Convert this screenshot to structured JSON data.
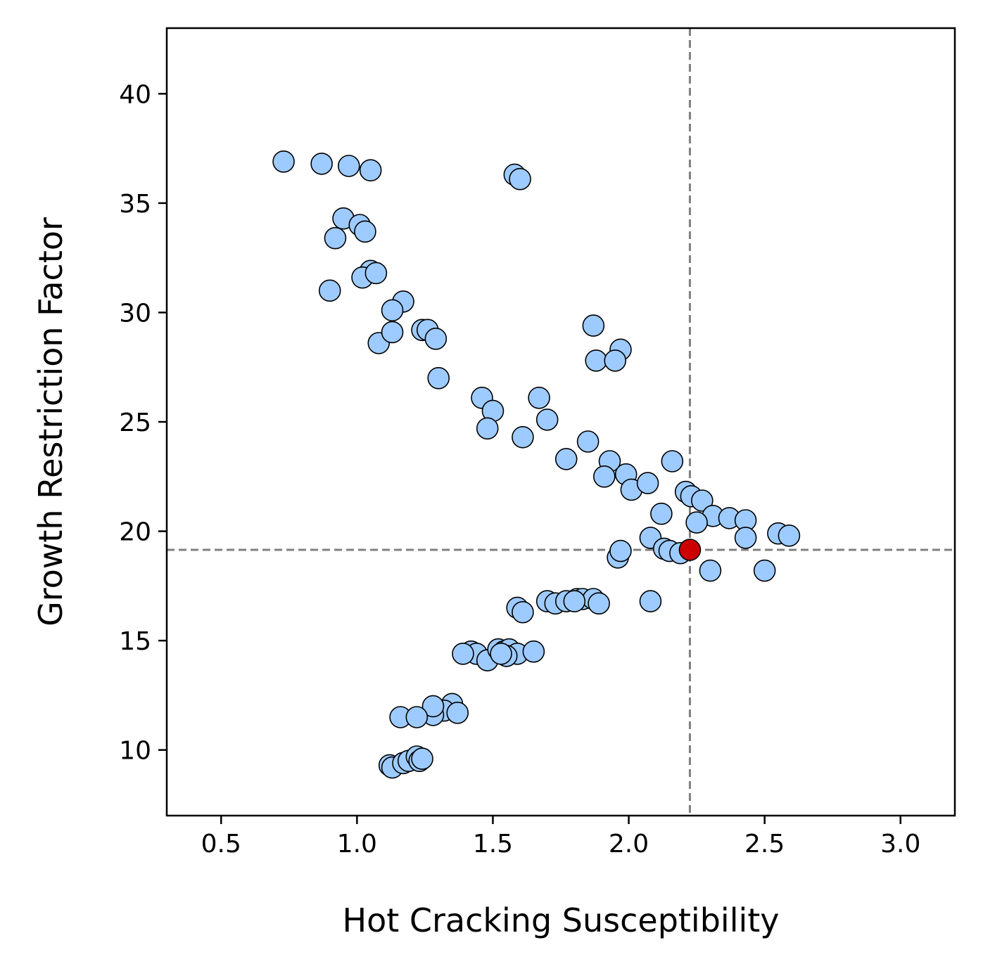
{
  "chart_data": {
    "type": "scatter",
    "title": "",
    "xlabel": "Hot Cracking Susceptibility",
    "ylabel": "Growth Restriction Factor",
    "xlim": [
      0.3,
      3.2
    ],
    "ylim": [
      7,
      43
    ],
    "x_ticks": [
      0.5,
      1.0,
      1.5,
      2.0,
      2.5,
      3.0
    ],
    "x_tick_labels": [
      "0.5",
      "1.0",
      "1.5",
      "2.0",
      "2.5",
      "3.0"
    ],
    "y_ticks": [
      10,
      15,
      20,
      25,
      30,
      35,
      40
    ],
    "y_tick_labels": [
      "10",
      "15",
      "20",
      "25",
      "30",
      "35",
      "40"
    ],
    "grid": false,
    "reference_lines": {
      "x": 2.225,
      "y": 19.15,
      "style": "dashed",
      "color": "#808080"
    },
    "series": [
      {
        "color": "#9ecbff",
        "edgecolor": "#000000",
        "points": [
          [
            0.73,
            36.9
          ],
          [
            0.87,
            36.8
          ],
          [
            0.97,
            36.7
          ],
          [
            1.05,
            36.5
          ],
          [
            1.58,
            36.3
          ],
          [
            1.6,
            36.1
          ],
          [
            0.95,
            34.3
          ],
          [
            0.92,
            33.4
          ],
          [
            1.01,
            34.0
          ],
          [
            1.03,
            33.7
          ],
          [
            1.05,
            31.9
          ],
          [
            1.02,
            31.6
          ],
          [
            1.07,
            31.8
          ],
          [
            0.9,
            31.0
          ],
          [
            1.17,
            30.5
          ],
          [
            1.13,
            30.1
          ],
          [
            1.08,
            28.6
          ],
          [
            1.13,
            29.1
          ],
          [
            1.24,
            29.2
          ],
          [
            1.26,
            29.2
          ],
          [
            1.29,
            28.8
          ],
          [
            1.3,
            27.0
          ],
          [
            1.87,
            29.4
          ],
          [
            1.97,
            28.3
          ],
          [
            1.88,
            27.8
          ],
          [
            1.95,
            27.8
          ],
          [
            1.46,
            26.1
          ],
          [
            1.5,
            25.5
          ],
          [
            1.48,
            24.7
          ],
          [
            1.61,
            24.3
          ],
          [
            1.67,
            26.1
          ],
          [
            1.7,
            25.1
          ],
          [
            1.77,
            23.3
          ],
          [
            1.85,
            24.1
          ],
          [
            1.93,
            23.2
          ],
          [
            1.91,
            22.5
          ],
          [
            1.99,
            22.6
          ],
          [
            2.01,
            21.9
          ],
          [
            2.07,
            22.2
          ],
          [
            2.16,
            23.2
          ],
          [
            2.21,
            21.8
          ],
          [
            2.23,
            21.6
          ],
          [
            2.27,
            21.4
          ],
          [
            2.31,
            20.7
          ],
          [
            2.37,
            20.6
          ],
          [
            2.43,
            20.5
          ],
          [
            2.25,
            20.4
          ],
          [
            2.12,
            20.8
          ],
          [
            2.08,
            19.7
          ],
          [
            2.43,
            19.7
          ],
          [
            2.55,
            19.9
          ],
          [
            2.59,
            19.8
          ],
          [
            2.13,
            19.2
          ],
          [
            2.15,
            19.1
          ],
          [
            2.19,
            19.0
          ],
          [
            1.96,
            18.8
          ],
          [
            1.97,
            19.1
          ],
          [
            2.3,
            18.2
          ],
          [
            2.5,
            18.2
          ],
          [
            2.08,
            16.8
          ],
          [
            1.59,
            16.5
          ],
          [
            1.61,
            16.3
          ],
          [
            1.7,
            16.8
          ],
          [
            1.73,
            16.7
          ],
          [
            1.77,
            16.8
          ],
          [
            1.81,
            16.9
          ],
          [
            1.83,
            16.9
          ],
          [
            1.87,
            16.9
          ],
          [
            1.8,
            16.8
          ],
          [
            1.89,
            16.7
          ],
          [
            1.42,
            14.5
          ],
          [
            1.44,
            14.4
          ],
          [
            1.48,
            14.1
          ],
          [
            1.52,
            14.6
          ],
          [
            1.54,
            14.5
          ],
          [
            1.56,
            14.6
          ],
          [
            1.59,
            14.4
          ],
          [
            1.65,
            14.5
          ],
          [
            1.39,
            14.4
          ],
          [
            1.55,
            14.3
          ],
          [
            1.53,
            14.4
          ],
          [
            1.35,
            12.1
          ],
          [
            1.32,
            11.8
          ],
          [
            1.28,
            11.6
          ],
          [
            1.37,
            11.7
          ],
          [
            1.28,
            12.0
          ],
          [
            1.16,
            11.5
          ],
          [
            1.22,
            11.5
          ],
          [
            1.12,
            9.3
          ],
          [
            1.13,
            9.2
          ],
          [
            1.17,
            9.4
          ],
          [
            1.19,
            9.5
          ],
          [
            1.22,
            9.7
          ],
          [
            1.23,
            9.5
          ],
          [
            1.24,
            9.6
          ]
        ]
      },
      {
        "color": "#cc0000",
        "edgecolor": "#000000",
        "points": [
          [
            2.225,
            19.15
          ]
        ]
      }
    ]
  }
}
